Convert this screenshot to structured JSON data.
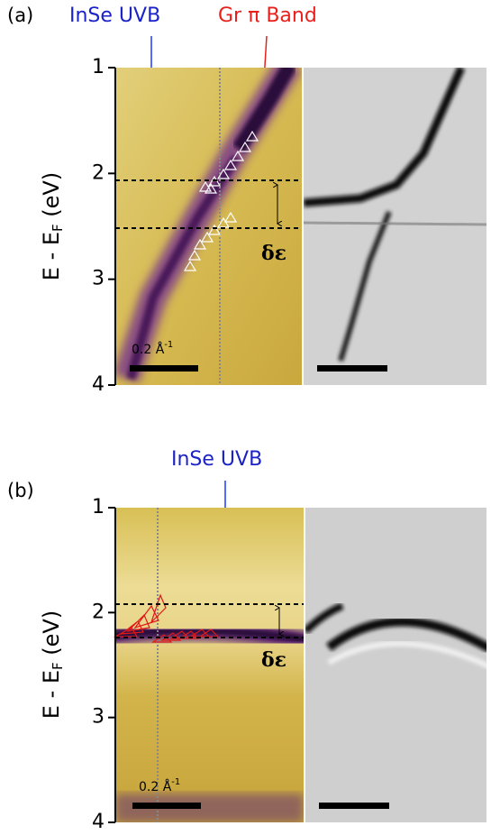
{
  "panels": [
    {
      "label": "(a)",
      "annotations": [
        "InSe UVB",
        "Gr π Band"
      ],
      "axis_label": {
        "main": "E - E",
        "subscript": "F",
        "unit": " (eV)"
      },
      "yticks": [
        1,
        2,
        3,
        4
      ],
      "scale_bar": {
        "text": "0.2 Å",
        "superscript": "-1"
      },
      "gap_label": "δε"
    },
    {
      "label": "(b)",
      "annotations": [
        "InSe UVB"
      ],
      "axis_label": {
        "main": "E - E",
        "subscript": "F",
        "unit": " (eV)"
      },
      "yticks": [
        1,
        2,
        3,
        4
      ],
      "scale_bar": {
        "text": "0.2 Å",
        "superscript": "-1"
      },
      "gap_label": "δε"
    }
  ]
}
